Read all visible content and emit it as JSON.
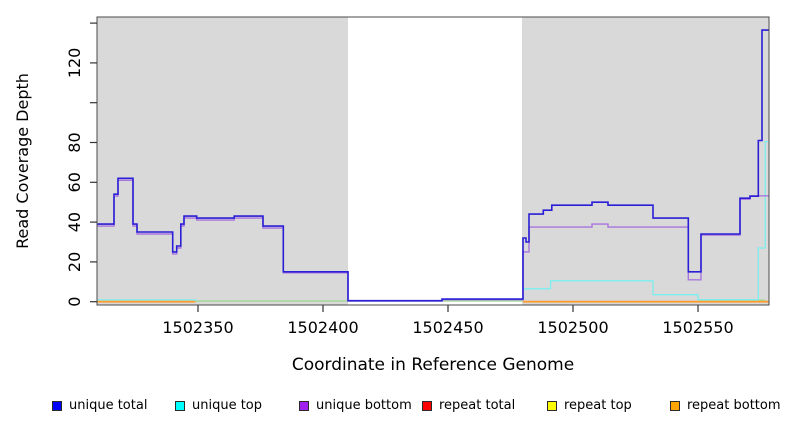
{
  "chart_data": {
    "type": "line",
    "subtype": "step",
    "title": "",
    "xlabel": "Coordinate in Reference Genome",
    "ylabel": "Read Coverage Depth",
    "x_range": [
      1502309.6,
      1502578.4
    ],
    "y_range": [
      0,
      140
    ],
    "grid": false,
    "background": "#ffffff",
    "plot_border_color": "#4a4a4a",
    "x_ticks": [
      {
        "v": 1502350,
        "label": "1502350"
      },
      {
        "v": 1502400,
        "label": "1502400"
      },
      {
        "v": 1502450,
        "label": "1502450"
      },
      {
        "v": 1502500,
        "label": "1502500"
      },
      {
        "v": 1502550,
        "label": "1502550"
      }
    ],
    "y_ticks": [
      {
        "v": 0,
        "label": "0"
      },
      {
        "v": 20,
        "label": "20"
      },
      {
        "v": 40,
        "label": "40"
      },
      {
        "v": 60,
        "label": "60"
      },
      {
        "v": 80,
        "label": "80"
      },
      {
        "v": 100,
        "label": ""
      },
      {
        "v": 120,
        "label": "120"
      },
      {
        "v": 140,
        "label": ""
      }
    ],
    "shaded_regions": [
      {
        "from": 1502309.6,
        "to": 1502410.0,
        "color": "#d9d9d9"
      },
      {
        "from": 1502479.6,
        "to": 1502578.4,
        "color": "#d9d9d9"
      }
    ],
    "series": [
      {
        "name": "baseline",
        "in_legend": false,
        "color": "#98d88a",
        "width": 1.3,
        "segments": [
          [
            [
              1502349,
              0.35
            ],
            [
              1502480,
              0.35
            ]
          ],
          [
            [
              1502550,
              0.8
            ],
            [
              1502576.9,
              0.8
            ]
          ]
        ]
      },
      {
        "name": "repeat total",
        "in_legend": true,
        "color": "#ff0000",
        "width": 1.4,
        "segments": [
          [
            [
              1502309.6,
              0
            ],
            [
              1502349,
              0
            ]
          ],
          [
            [
              1502480,
              0
            ],
            [
              1502578.4,
              0
            ]
          ]
        ]
      },
      {
        "name": "repeat top",
        "in_legend": true,
        "color": "#ffff00",
        "width": 1.4,
        "segments": [
          [
            [
              1502309.6,
              0
            ],
            [
              1502349,
              0
            ]
          ],
          [
            [
              1502480,
              0
            ],
            [
              1502578.4,
              0
            ]
          ]
        ]
      },
      {
        "name": "repeat bottom",
        "in_legend": true,
        "color": "#ff9d33",
        "width": 1.8,
        "segments": [
          [
            [
              1502309.6,
              0
            ],
            [
              1502349,
              0
            ]
          ],
          [
            [
              1502480,
              0
            ],
            [
              1502578.4,
              0
            ]
          ]
        ]
      },
      {
        "name": "unique top",
        "in_legend": true,
        "color": "#7deeee",
        "width": 1.3,
        "segments": [
          [
            [
              1502309.6,
              0.9
            ],
            [
              1502349,
              0.3
            ],
            [
              1502349,
              0.3
            ]
          ],
          [
            [
              1502480,
              6.5
            ],
            [
              1502491,
              10.5
            ],
            [
              1502532,
              3.5
            ],
            [
              1502550,
              1
            ],
            [
              1502574.1,
              27
            ],
            [
              1502576.9,
              80.5
            ],
            [
              1502578.4,
              80.5
            ]
          ]
        ]
      },
      {
        "name": "unique bottom",
        "in_legend": true,
        "color": "#a875de",
        "width": 1.4,
        "segments": [
          [
            [
              1502309.6,
              38
            ],
            [
              1502316.4,
              53
            ],
            [
              1502318,
              61
            ],
            [
              1502324,
              38
            ],
            [
              1502325.6,
              34
            ],
            [
              1502339.9,
              24
            ],
            [
              1502341.5,
              27
            ],
            [
              1502343.1,
              38
            ],
            [
              1502344.4,
              42
            ],
            [
              1502349.5,
              41
            ],
            [
              1502364.5,
              42
            ],
            [
              1502376,
              37
            ],
            [
              1502384.1,
              14.5
            ],
            [
              1502410,
              0.3
            ],
            [
              1502447.6,
              1
            ],
            [
              1502480,
              25
            ],
            [
              1502482.4,
              37.5
            ],
            [
              1502507.6,
              39
            ],
            [
              1502514,
              37.5
            ],
            [
              1502546.1,
              11
            ],
            [
              1502551.2,
              33.5
            ],
            [
              1502566.8,
              51.5
            ],
            [
              1502570.8,
              53.2
            ],
            [
              1502578.4,
              53.2
            ]
          ]
        ]
      },
      {
        "name": "unique total",
        "in_legend": true,
        "color": "#2a1fd6",
        "width": 1.6,
        "segments": [
          [
            [
              1502309.6,
              39
            ],
            [
              1502316.4,
              54
            ],
            [
              1502318,
              62
            ],
            [
              1502324,
              39
            ],
            [
              1502325.6,
              35
            ],
            [
              1502339.9,
              25
            ],
            [
              1502341.5,
              28
            ],
            [
              1502343.1,
              39
            ],
            [
              1502344.4,
              43
            ],
            [
              1502349.5,
              42
            ],
            [
              1502364.5,
              43
            ],
            [
              1502376,
              38
            ],
            [
              1502384.1,
              15
            ],
            [
              1502410,
              0.5
            ],
            [
              1502447.6,
              1.3
            ],
            [
              1502480,
              32
            ],
            [
              1502481.2,
              30
            ],
            [
              1502482.4,
              44
            ],
            [
              1502488.1,
              46
            ],
            [
              1502491.5,
              48.5
            ],
            [
              1502507.6,
              50
            ],
            [
              1502514,
              48.5
            ],
            [
              1502532,
              42
            ],
            [
              1502546.1,
              15
            ],
            [
              1502551.2,
              34
            ],
            [
              1502566.8,
              52
            ],
            [
              1502570.8,
              53
            ],
            [
              1502574.1,
              81
            ],
            [
              1502575.6,
              136.5
            ],
            [
              1502578.4,
              136.5
            ]
          ]
        ]
      }
    ],
    "legend": {
      "position": "bottom",
      "entries": [
        {
          "label": "unique total",
          "swatch_color": "#0000ff"
        },
        {
          "label": "unique top",
          "swatch_color": "#00ffff"
        },
        {
          "label": "unique bottom",
          "swatch_color": "#a020f0"
        },
        {
          "label": "repeat total",
          "swatch_color": "#ff0000"
        },
        {
          "label": "repeat top",
          "swatch_color": "#ffff00"
        },
        {
          "label": "repeat bottom",
          "swatch_color": "#ffa500"
        }
      ]
    }
  }
}
